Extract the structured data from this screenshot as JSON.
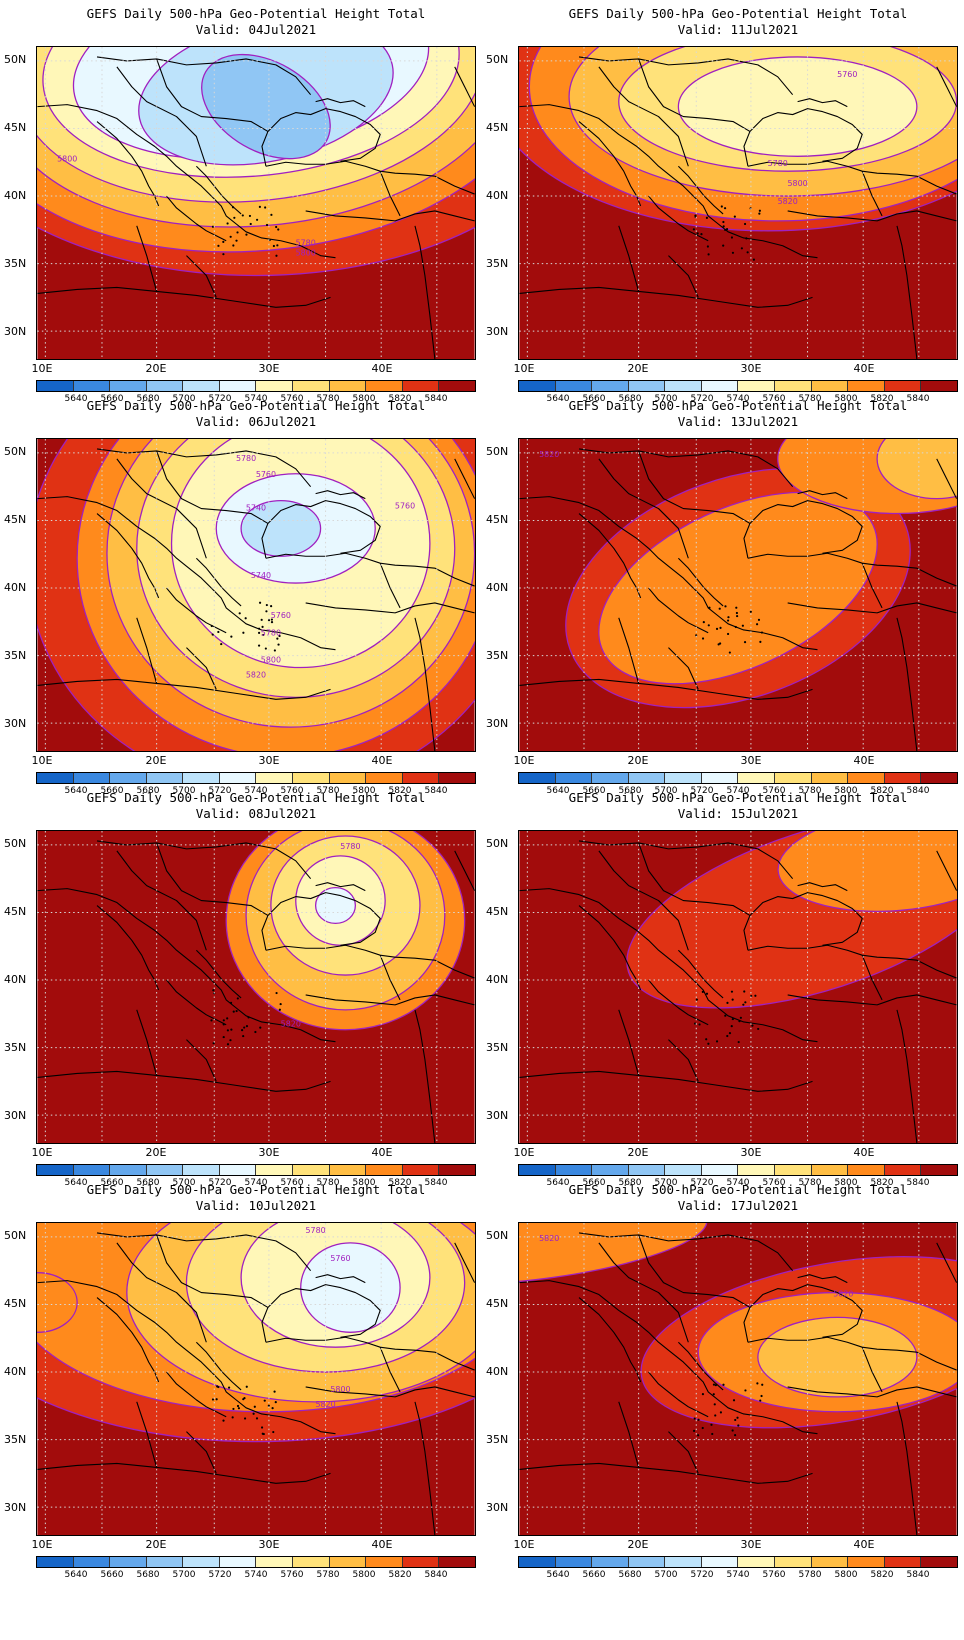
{
  "title": "GEFS Daily 500-hPa Geo-Potential Height Total",
  "lat_labels": [
    "50N",
    "45N",
    "40N",
    "35N",
    "30N"
  ],
  "lon_labels": [
    "10E",
    "20E",
    "30E",
    "40E"
  ],
  "colorbar": {
    "labels": [
      "5640",
      "5660",
      "5680",
      "5700",
      "5720",
      "5740",
      "5760",
      "5780",
      "5800",
      "5820",
      "5840"
    ],
    "colors": [
      "#1565c8",
      "#3a88e0",
      "#64a8ec",
      "#90c6f4",
      "#bde3fb",
      "#e8f8ff",
      "#fff7b8",
      "#ffe27a",
      "#ffbe44",
      "#ff8a1c",
      "#e03214",
      "#a20c0c"
    ]
  },
  "contour_color": "#a020c0",
  "chart_data": [
    {
      "type": "heatmap",
      "variable": "500-hPa geopotential height",
      "valid": "Valid: 04Jul2021",
      "contour_labels": [
        "5800",
        "5780",
        "5800"
      ]
    },
    {
      "type": "heatmap",
      "variable": "500-hPa geopotential height",
      "valid": "Valid: 11Jul2021",
      "contour_labels": [
        "5760",
        "5780",
        "5800",
        "5820"
      ]
    },
    {
      "type": "heatmap",
      "variable": "500-hPa geopotential height",
      "valid": "Valid: 06Jul2021",
      "contour_labels": [
        "5780",
        "5760",
        "5760",
        "5740",
        "5740",
        "5760",
        "5780",
        "5800",
        "5820"
      ]
    },
    {
      "type": "heatmap",
      "variable": "500-hPa geopotential height",
      "valid": "Valid: 13Jul2021",
      "contour_labels": [
        "5820"
      ]
    },
    {
      "type": "heatmap",
      "variable": "500-hPa geopotential height",
      "valid": "Valid: 08Jul2021",
      "contour_labels": [
        "5780",
        "5820"
      ]
    },
    {
      "type": "heatmap",
      "variable": "500-hPa geopotential height",
      "valid": "Valid: 15Jul2021",
      "contour_labels": []
    },
    {
      "type": "heatmap",
      "variable": "500-hPa geopotential height",
      "valid": "Valid: 10Jul2021",
      "contour_labels": [
        "5780",
        "5760",
        "5800",
        "5820"
      ]
    },
    {
      "type": "heatmap",
      "variable": "500-hPa geopotential height",
      "valid": "Valid: 17Jul2021",
      "contour_labels": [
        "5820",
        "5820"
      ]
    }
  ]
}
